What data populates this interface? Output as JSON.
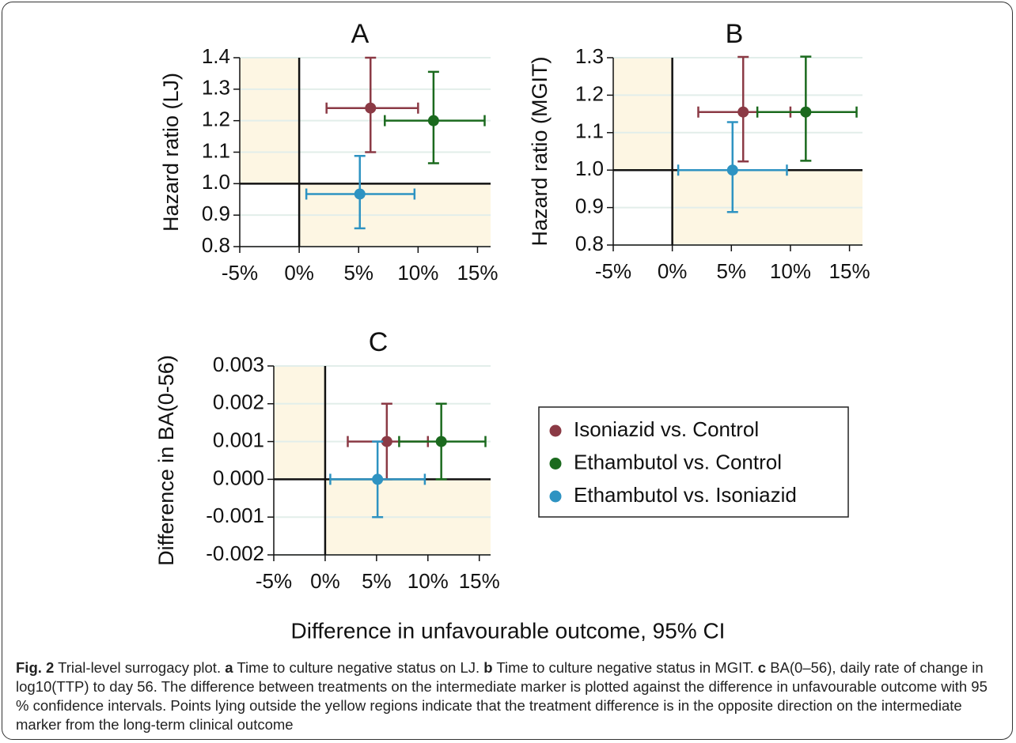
{
  "chart_data": [
    {
      "type": "scatter",
      "title": "A",
      "y_label": "Hazard ratio (LJ)",
      "xlim": [
        -5,
        16.1
      ],
      "xticks": [
        {
          "value": -5,
          "label": "-5%"
        },
        {
          "value": 0,
          "label": "0%"
        },
        {
          "value": 5,
          "label": "5%"
        },
        {
          "value": 10,
          "label": "10%"
        },
        {
          "value": 15,
          "label": "15%"
        }
      ],
      "ylim": [
        0.8,
        1.4
      ],
      "yticks": [
        0.8,
        0.9,
        {
          "value": 1,
          "label": "1.0"
        },
        1.1,
        1.2,
        1.3,
        1.4
      ],
      "grid": true,
      "reference_x": 0,
      "reference_y": 1,
      "shade_color": "#fdf6e3",
      "series": [
        {
          "name": "Isoniazid vs. Control",
          "color": "#8b3a45",
          "x": [
            6.0
          ],
          "values": [
            1.24
          ],
          "x_lower": [
            2.3
          ],
          "x_upper": [
            10.0
          ],
          "y_lower": [
            1.1
          ],
          "y_upper": [
            1.4
          ]
        },
        {
          "name": "Ethambutol vs. Control",
          "color": "#1b6a1e",
          "x": [
            11.3
          ],
          "values": [
            1.2
          ],
          "x_lower": [
            7.2
          ],
          "x_upper": [
            15.6
          ],
          "y_lower": [
            1.065
          ],
          "y_upper": [
            1.355
          ]
        },
        {
          "name": "Ethambutol vs. Isoniazid",
          "color": "#2e93c2",
          "x": [
            5.1
          ],
          "values": [
            0.967
          ],
          "x_lower": [
            0.6
          ],
          "x_upper": [
            9.7
          ],
          "y_lower": [
            0.858
          ],
          "y_upper": [
            1.088
          ]
        }
      ]
    },
    {
      "type": "scatter",
      "title": "B",
      "y_label": "Hazard ratio (MGIT)",
      "xlim": [
        -5,
        16.1
      ],
      "xticks": [
        {
          "value": -5,
          "label": "-5%"
        },
        {
          "value": 0,
          "label": "0%"
        },
        {
          "value": 5,
          "label": "5%"
        },
        {
          "value": 10,
          "label": "10%"
        },
        {
          "value": 15,
          "label": "15%"
        }
      ],
      "ylim": [
        0.8,
        1.3
      ],
      "yticks": [
        0.8,
        0.9,
        {
          "value": 1,
          "label": "1.0"
        },
        1.1,
        1.2,
        1.3
      ],
      "grid": true,
      "reference_x": 0,
      "reference_y": 1,
      "shade_color": "#fdf6e3",
      "series": [
        {
          "color": "#8b3a45",
          "x": [
            6.0
          ],
          "values": [
            1.155
          ],
          "x_lower": [
            2.2
          ],
          "x_upper": [
            10.0
          ],
          "y_lower": [
            1.023
          ],
          "y_upper": [
            1.302
          ]
        },
        {
          "color": "#1b6a1e",
          "x": [
            11.3
          ],
          "values": [
            1.155
          ],
          "x_lower": [
            7.2
          ],
          "x_upper": [
            15.6
          ],
          "y_lower": [
            1.025
          ],
          "y_upper": [
            1.303
          ]
        },
        {
          "color": "#2e93c2",
          "x": [
            5.1
          ],
          "values": [
            1.0
          ],
          "x_lower": [
            0.5
          ],
          "x_upper": [
            9.7
          ],
          "y_lower": [
            0.888
          ],
          "y_upper": [
            1.128
          ]
        }
      ]
    },
    {
      "type": "scatter",
      "title": "C",
      "y_label": "Difference in BA(0-56)",
      "xlim": [
        -5,
        16.1
      ],
      "xticks": [
        {
          "value": -5,
          "label": "-5%"
        },
        {
          "value": 0,
          "label": "0%"
        },
        {
          "value": 5,
          "label": "5%"
        },
        {
          "value": 10,
          "label": "10%"
        },
        {
          "value": 15,
          "label": "15%"
        }
      ],
      "ylim": [
        -0.002,
        0.003
      ],
      "yticks": [
        {
          "value": -0.002,
          "label": "-0.002"
        },
        {
          "value": -0.001,
          "label": "-0.001"
        },
        {
          "value": 0,
          "label": "0.000"
        },
        0.001,
        0.002,
        0.003
      ],
      "grid": true,
      "reference_x": 0,
      "reference_y": 0,
      "shade_color": "#fdf6e3",
      "series": [
        {
          "color": "#8b3a45",
          "x": [
            6.0
          ],
          "values": [
            0.001
          ],
          "x_lower": [
            2.2
          ],
          "x_upper": [
            10.0
          ],
          "y_lower": [
            0
          ],
          "y_upper": [
            0.002
          ]
        },
        {
          "color": "#1b6a1e",
          "x": [
            11.3
          ],
          "values": [
            0.001
          ],
          "x_lower": [
            7.2
          ],
          "x_upper": [
            15.6
          ],
          "y_lower": [
            0
          ],
          "y_upper": [
            0.002
          ]
        },
        {
          "color": "#2e93c2",
          "x": [
            5.1
          ],
          "values": [
            0
          ],
          "x_lower": [
            0.5
          ],
          "x_upper": [
            9.7
          ],
          "y_lower": [
            -0.001
          ],
          "y_upper": [
            0.001
          ]
        }
      ]
    }
  ],
  "x_label": "Difference in unfavourable outcome, 95% CI",
  "caption": {
    "label": "Fig. 2",
    "text": "Trial-level surrogacy plot.",
    "panels": [
      {
        "label": "a",
        "text": "Time to culture negative status on LJ."
      },
      {
        "label": "b",
        "text": "Time to culture negative status in MGIT."
      },
      {
        "label": "c",
        "text": "BA(0–56), daily rate of change in log10(TTP) to day 56. The difference between treatments on the intermediate marker is plotted against the difference in unfavourable outcome with 95 % confidence intervals. Points lying outside the yellow regions indicate that the treatment difference is in the opposite direction on the intermediate marker from the long-term clinical outcome"
      }
    ]
  }
}
